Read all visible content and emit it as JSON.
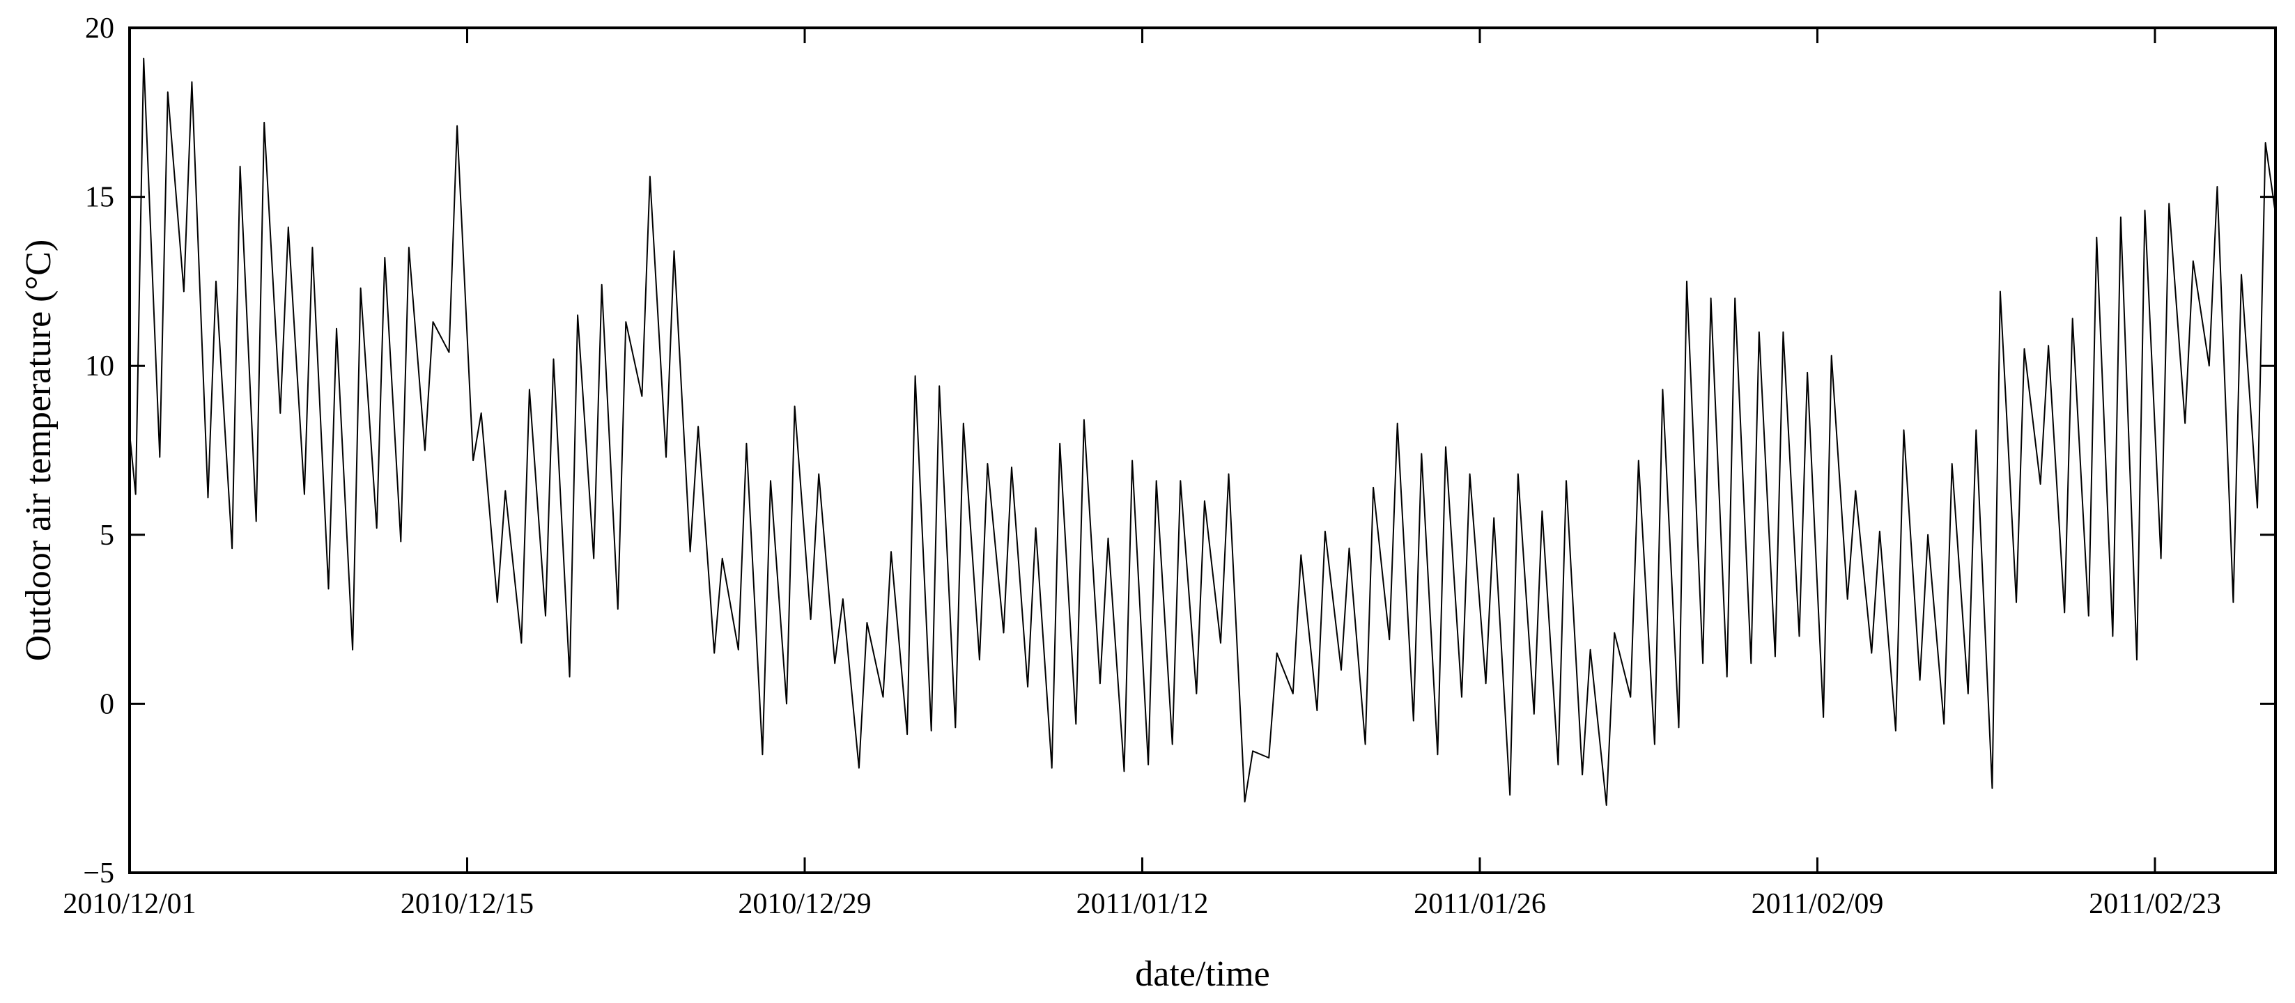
{
  "chart_data": {
    "type": "line",
    "title": "",
    "xlabel": "date/time",
    "ylabel": "Outdoor air temperature (°C)",
    "xlim": [
      "2010/12/01",
      "2011/02/28"
    ],
    "ylim": [
      -5,
      20
    ],
    "x_ticks": [
      "2010/12/01",
      "2010/12/15",
      "2010/12/29",
      "2011/01/12",
      "2011/01/26",
      "2011/02/09",
      "2011/02/23"
    ],
    "y_ticks": [
      20,
      15,
      10,
      5,
      0,
      -5
    ],
    "grid": false,
    "legend": "none",
    "line_color": "#000000",
    "series": [
      {
        "points": [
          [
            "2010/12/01 00:00",
            8.0
          ],
          [
            "2010/12/01 06:00",
            6.2
          ],
          [
            "2010/12/01 14:00",
            19.1
          ],
          [
            "2010/12/02 06:00",
            7.3
          ],
          [
            "2010/12/02 14:00",
            18.1
          ],
          [
            "2010/12/03 06:00",
            12.2
          ],
          [
            "2010/12/03 14:00",
            18.4
          ],
          [
            "2010/12/04 06:00",
            6.1
          ],
          [
            "2010/12/04 14:00",
            12.5
          ],
          [
            "2010/12/05 06:00",
            4.6
          ],
          [
            "2010/12/05 14:00",
            15.9
          ],
          [
            "2010/12/06 06:00",
            5.4
          ],
          [
            "2010/12/06 14:00",
            17.2
          ],
          [
            "2010/12/07 06:00",
            8.6
          ],
          [
            "2010/12/07 14:00",
            14.1
          ],
          [
            "2010/12/08 06:00",
            6.2
          ],
          [
            "2010/12/08 14:00",
            13.5
          ],
          [
            "2010/12/09 06:00",
            3.4
          ],
          [
            "2010/12/09 14:00",
            11.1
          ],
          [
            "2010/12/10 06:00",
            1.6
          ],
          [
            "2010/12/10 14:00",
            12.3
          ],
          [
            "2010/12/11 06:00",
            5.2
          ],
          [
            "2010/12/11 14:00",
            13.2
          ],
          [
            "2010/12/12 06:00",
            4.8
          ],
          [
            "2010/12/12 14:00",
            13.5
          ],
          [
            "2010/12/13 06:00",
            7.5
          ],
          [
            "2010/12/13 14:00",
            11.3
          ],
          [
            "2010/12/14 06:00",
            10.4
          ],
          [
            "2010/12/14 14:00",
            17.1
          ],
          [
            "2010/12/15 06:00",
            7.2
          ],
          [
            "2010/12/15 14:00",
            8.6
          ],
          [
            "2010/12/16 06:00",
            3.0
          ],
          [
            "2010/12/16 14:00",
            6.3
          ],
          [
            "2010/12/17 06:00",
            1.8
          ],
          [
            "2010/12/17 14:00",
            9.3
          ],
          [
            "2010/12/18 06:00",
            2.6
          ],
          [
            "2010/12/18 14:00",
            10.2
          ],
          [
            "2010/12/19 06:00",
            0.8
          ],
          [
            "2010/12/19 14:00",
            11.5
          ],
          [
            "2010/12/20 06:00",
            4.3
          ],
          [
            "2010/12/20 14:00",
            12.4
          ],
          [
            "2010/12/21 06:00",
            2.8
          ],
          [
            "2010/12/21 14:00",
            11.3
          ],
          [
            "2010/12/22 06:00",
            9.1
          ],
          [
            "2010/12/22 14:00",
            15.6
          ],
          [
            "2010/12/23 06:00",
            7.3
          ],
          [
            "2010/12/23 14:00",
            13.4
          ],
          [
            "2010/12/24 06:00",
            4.5
          ],
          [
            "2010/12/24 14:00",
            8.2
          ],
          [
            "2010/12/25 06:00",
            1.5
          ],
          [
            "2010/12/25 14:00",
            4.3
          ],
          [
            "2010/12/26 06:00",
            1.6
          ],
          [
            "2010/12/26 14:00",
            7.7
          ],
          [
            "2010/12/27 06:00",
            -1.5
          ],
          [
            "2010/12/27 14:00",
            6.6
          ],
          [
            "2010/12/28 06:00",
            0.0
          ],
          [
            "2010/12/28 14:00",
            8.8
          ],
          [
            "2010/12/29 06:00",
            2.5
          ],
          [
            "2010/12/29 14:00",
            6.8
          ],
          [
            "2010/12/30 06:00",
            1.2
          ],
          [
            "2010/12/30 14:00",
            3.1
          ],
          [
            "2010/12/31 06:00",
            -1.9
          ],
          [
            "2010/12/31 14:00",
            2.4
          ],
          [
            "2011/01/01 06:00",
            0.2
          ],
          [
            "2011/01/01 14:00",
            4.5
          ],
          [
            "2011/01/02 06:00",
            -0.9
          ],
          [
            "2011/01/02 14:00",
            9.7
          ],
          [
            "2011/01/03 06:00",
            -0.8
          ],
          [
            "2011/01/03 14:00",
            9.4
          ],
          [
            "2011/01/04 06:00",
            -0.7
          ],
          [
            "2011/01/04 14:00",
            8.3
          ],
          [
            "2011/01/05 06:00",
            1.3
          ],
          [
            "2011/01/05 14:00",
            7.1
          ],
          [
            "2011/01/06 06:00",
            2.1
          ],
          [
            "2011/01/06 14:00",
            7.0
          ],
          [
            "2011/01/07 06:00",
            0.5
          ],
          [
            "2011/01/07 14:00",
            5.2
          ],
          [
            "2011/01/08 06:00",
            -1.9
          ],
          [
            "2011/01/08 14:00",
            7.7
          ],
          [
            "2011/01/09 06:00",
            -0.6
          ],
          [
            "2011/01/09 14:00",
            8.4
          ],
          [
            "2011/01/10 06:00",
            0.6
          ],
          [
            "2011/01/10 14:00",
            4.9
          ],
          [
            "2011/01/11 06:00",
            -2.0
          ],
          [
            "2011/01/11 14:00",
            7.2
          ],
          [
            "2011/01/12 06:00",
            -1.8
          ],
          [
            "2011/01/12 14:00",
            6.6
          ],
          [
            "2011/01/13 06:00",
            -1.2
          ],
          [
            "2011/01/13 14:00",
            6.6
          ],
          [
            "2011/01/14 06:00",
            0.3
          ],
          [
            "2011/01/14 14:00",
            6.0
          ],
          [
            "2011/01/15 06:00",
            1.8
          ],
          [
            "2011/01/15 14:00",
            6.8
          ],
          [
            "2011/01/16 06:00",
            -2.9
          ],
          [
            "2011/01/16 14:00",
            -1.4
          ],
          [
            "2011/01/17 06:00",
            -1.6
          ],
          [
            "2011/01/17 14:00",
            1.5
          ],
          [
            "2011/01/18 06:00",
            0.3
          ],
          [
            "2011/01/18 14:00",
            4.4
          ],
          [
            "2011/01/19 06:00",
            -0.2
          ],
          [
            "2011/01/19 14:00",
            5.1
          ],
          [
            "2011/01/20 06:00",
            1.0
          ],
          [
            "2011/01/20 14:00",
            4.6
          ],
          [
            "2011/01/21 06:00",
            -1.2
          ],
          [
            "2011/01/21 14:00",
            6.4
          ],
          [
            "2011/01/22 06:00",
            1.9
          ],
          [
            "2011/01/22 14:00",
            8.3
          ],
          [
            "2011/01/23 06:00",
            -0.5
          ],
          [
            "2011/01/23 14:00",
            7.4
          ],
          [
            "2011/01/24 06:00",
            -1.5
          ],
          [
            "2011/01/24 14:00",
            7.6
          ],
          [
            "2011/01/25 06:00",
            0.2
          ],
          [
            "2011/01/25 14:00",
            6.8
          ],
          [
            "2011/01/26 06:00",
            0.6
          ],
          [
            "2011/01/26 14:00",
            5.5
          ],
          [
            "2011/01/27 06:00",
            -2.7
          ],
          [
            "2011/01/27 14:00",
            6.8
          ],
          [
            "2011/01/28 06:00",
            -0.3
          ],
          [
            "2011/01/28 14:00",
            5.7
          ],
          [
            "2011/01/29 06:00",
            -1.8
          ],
          [
            "2011/01/29 14:00",
            6.6
          ],
          [
            "2011/01/30 06:00",
            -2.1
          ],
          [
            "2011/01/30 14:00",
            1.6
          ],
          [
            "2011/01/31 06:00",
            -3.0
          ],
          [
            "2011/01/31 14:00",
            2.1
          ],
          [
            "2011/02/01 06:00",
            0.2
          ],
          [
            "2011/02/01 14:00",
            7.2
          ],
          [
            "2011/02/02 06:00",
            -1.2
          ],
          [
            "2011/02/02 14:00",
            9.3
          ],
          [
            "2011/02/03 06:00",
            -0.7
          ],
          [
            "2011/02/03 14:00",
            12.5
          ],
          [
            "2011/02/04 06:00",
            1.2
          ],
          [
            "2011/02/04 14:00",
            12.0
          ],
          [
            "2011/02/05 06:00",
            0.8
          ],
          [
            "2011/02/05 14:00",
            12.0
          ],
          [
            "2011/02/06 06:00",
            1.2
          ],
          [
            "2011/02/06 14:00",
            11.0
          ],
          [
            "2011/02/07 06:00",
            1.4
          ],
          [
            "2011/02/07 14:00",
            11.0
          ],
          [
            "2011/02/08 06:00",
            2.0
          ],
          [
            "2011/02/08 14:00",
            9.8
          ],
          [
            "2011/02/09 06:00",
            -0.4
          ],
          [
            "2011/02/09 14:00",
            10.3
          ],
          [
            "2011/02/10 06:00",
            3.1
          ],
          [
            "2011/02/10 14:00",
            6.3
          ],
          [
            "2011/02/11 06:00",
            1.5
          ],
          [
            "2011/02/11 14:00",
            5.1
          ],
          [
            "2011/02/12 06:00",
            -0.8
          ],
          [
            "2011/02/12 14:00",
            8.1
          ],
          [
            "2011/02/13 06:00",
            0.7
          ],
          [
            "2011/02/13 14:00",
            5.0
          ],
          [
            "2011/02/14 06:00",
            -0.6
          ],
          [
            "2011/02/14 14:00",
            7.1
          ],
          [
            "2011/02/15 06:00",
            0.3
          ],
          [
            "2011/02/15 14:00",
            8.1
          ],
          [
            "2011/02/16 06:00",
            -2.5
          ],
          [
            "2011/02/16 14:00",
            12.2
          ],
          [
            "2011/02/17 06:00",
            3.0
          ],
          [
            "2011/02/17 14:00",
            10.5
          ],
          [
            "2011/02/18 06:00",
            6.5
          ],
          [
            "2011/02/18 14:00",
            10.6
          ],
          [
            "2011/02/19 06:00",
            2.7
          ],
          [
            "2011/02/19 14:00",
            11.4
          ],
          [
            "2011/02/20 06:00",
            2.6
          ],
          [
            "2011/02/20 14:00",
            13.8
          ],
          [
            "2011/02/21 06:00",
            2.0
          ],
          [
            "2011/02/21 14:00",
            14.4
          ],
          [
            "2011/02/22 06:00",
            1.3
          ],
          [
            "2011/02/22 14:00",
            14.6
          ],
          [
            "2011/02/23 06:00",
            4.3
          ],
          [
            "2011/02/23 14:00",
            14.8
          ],
          [
            "2011/02/24 06:00",
            8.3
          ],
          [
            "2011/02/24 14:00",
            13.1
          ],
          [
            "2011/02/25 06:00",
            10.0
          ],
          [
            "2011/02/25 14:00",
            15.3
          ],
          [
            "2011/02/26 06:00",
            3.0
          ],
          [
            "2011/02/26 14:00",
            12.7
          ],
          [
            "2011/02/27 06:00",
            5.8
          ],
          [
            "2011/02/27 14:00",
            16.6
          ],
          [
            "2011/02/28 00:00",
            14.5
          ]
        ]
      }
    ]
  }
}
